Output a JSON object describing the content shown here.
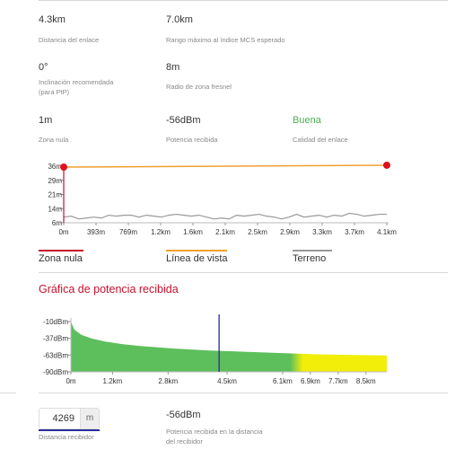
{
  "metrics": [
    {
      "value": "4.3km",
      "label": "Distancia del enlace"
    },
    {
      "value": "7.0km",
      "label": "Rango máximo al índice MCS esperado"
    },
    {
      "value": "0°",
      "label": "Inclinación recomendada\n(para PtP)"
    },
    {
      "value": "8m",
      "label": "Radio de zona fresnel"
    },
    {
      "value": "1m",
      "label": "Zona nula"
    },
    {
      "value": "-56dBm",
      "label": "Potencia recibida"
    },
    {
      "value": "Buena",
      "label": "Calidad del enlace"
    }
  ],
  "colors": {
    "good": "#4caf50",
    "accent": "#c8102e",
    "los": "#f0a030",
    "terrain": "#999999",
    "green": "#5cbf5c",
    "yellow": "#f2ee0a",
    "marker": "#2a2a9a"
  },
  "legend": {
    "null_zone": "Zona nula",
    "line_of_sight": "Línea de vista",
    "terrain": "Terreno"
  },
  "power_title": "Gráfica de potencia recibida",
  "receiver": {
    "distance_value": "4269",
    "distance_unit": "m",
    "distance_label": "Distancia recibidor",
    "power_value": "-56dBm",
    "power_label": "Potencia recibida en la distancia\ndel recibidor"
  },
  "chart_data": [
    {
      "type": "line",
      "x_ticks": [
        "0m",
        "393m",
        "769m",
        "1.2km",
        "1.6km",
        "2.1km",
        "2.5km",
        "2.9km",
        "3.3km",
        "3.7km",
        "4.1km"
      ],
      "y_ticks": [
        "6m",
        "14m",
        "21m",
        "29m",
        "36m"
      ],
      "ylim": [
        6,
        36
      ],
      "xlim": [
        0,
        4.3
      ],
      "series": [
        {
          "key": "los",
          "x": [
            0,
            4.3
          ],
          "y": [
            35.5,
            36.5
          ]
        },
        {
          "key": "terrain",
          "x": [
            0,
            0.1,
            0.2,
            0.3,
            0.4,
            0.5,
            0.6,
            0.7,
            0.8,
            0.9,
            1.0,
            1.1,
            1.2,
            1.3,
            1.4,
            1.5,
            1.6,
            1.7,
            1.8,
            1.9,
            2.0,
            2.1,
            2.2,
            2.3,
            2.4,
            2.5,
            2.6,
            2.7,
            2.8,
            2.9,
            3.0,
            3.1,
            3.2,
            3.3,
            3.4,
            3.5,
            3.6,
            3.7,
            3.8,
            3.9,
            4.0,
            4.1,
            4.2,
            4.3
          ],
          "y": [
            9,
            9.5,
            8,
            8.5,
            9,
            8.5,
            10,
            9.5,
            10,
            10,
            9,
            10,
            9.5,
            9,
            10,
            10.5,
            10,
            9.5,
            10,
            9,
            8,
            8.5,
            8,
            10,
            9.5,
            10,
            10.5,
            9.5,
            9,
            8,
            9,
            10.5,
            9,
            9.5,
            10,
            9,
            10,
            9.5,
            11,
            10.5,
            9.5,
            10,
            10.5,
            10.5
          ]
        }
      ]
    },
    {
      "type": "area",
      "x_ticks": [
        "0m",
        "1.2km",
        "2.8km",
        "4.5km",
        "6.1km",
        "6.9km",
        "7.7km",
        "8.5km"
      ],
      "y_ticks": [
        "-10dBm",
        "-37dBm",
        "-63dBm",
        "-90dBm"
      ],
      "ylim": [
        -90,
        -10
      ],
      "xlim": [
        0,
        9.1
      ],
      "marker_x": 4.269,
      "green_until": 6.5,
      "series": [
        {
          "key": "power",
          "x": [
            0,
            0.1,
            0.3,
            0.6,
            1,
            1.5,
            2,
            3,
            4,
            5,
            6,
            7,
            8,
            9.1
          ],
          "y": [
            -10,
            -23,
            -31,
            -37,
            -42,
            -46,
            -49,
            -53,
            -56,
            -58,
            -60,
            -62,
            -63,
            -64
          ]
        }
      ]
    }
  ]
}
